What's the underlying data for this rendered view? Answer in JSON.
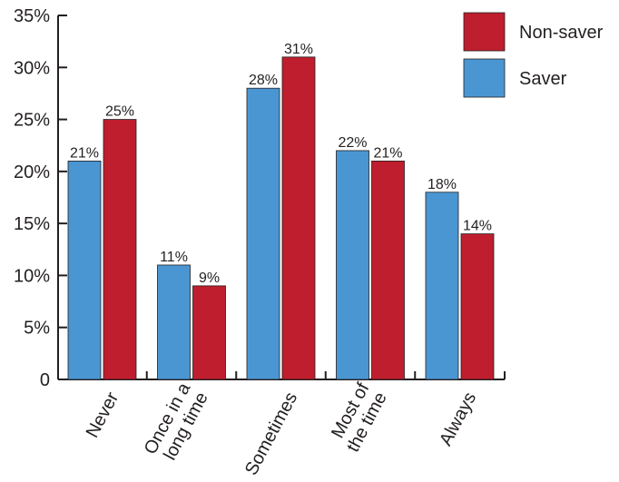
{
  "chart_data": {
    "type": "bar",
    "categories": [
      [
        "Never"
      ],
      [
        "Once in a",
        "long time"
      ],
      [
        "Sometimes"
      ],
      [
        "Most of",
        "the time"
      ],
      [
        "Always"
      ]
    ],
    "series": [
      {
        "name": "Saver",
        "color": "#4a96d2",
        "values": [
          21,
          11,
          28,
          22,
          18
        ],
        "labels": [
          "21%",
          "11%",
          "28%",
          "22%",
          "18%"
        ]
      },
      {
        "name": "Non-saver",
        "color": "#be1e2d",
        "values": [
          25,
          9,
          31,
          21,
          14
        ],
        "labels": [
          "25%",
          "9%",
          "31%",
          "21%",
          "14%"
        ]
      }
    ],
    "y_ticks": [
      {
        "value": 0,
        "label": "0"
      },
      {
        "value": 5,
        "label": "5%"
      },
      {
        "value": 10,
        "label": "10%"
      },
      {
        "value": 15,
        "label": "15%"
      },
      {
        "value": 20,
        "label": "20%"
      },
      {
        "value": 25,
        "label": "25%"
      },
      {
        "value": 30,
        "label": "30%"
      },
      {
        "value": 35,
        "label": "35%"
      }
    ],
    "ylim": [
      0,
      35
    ],
    "legend": {
      "position": "top-right",
      "order": [
        "Non-saver",
        "Saver"
      ]
    },
    "grid": false
  }
}
